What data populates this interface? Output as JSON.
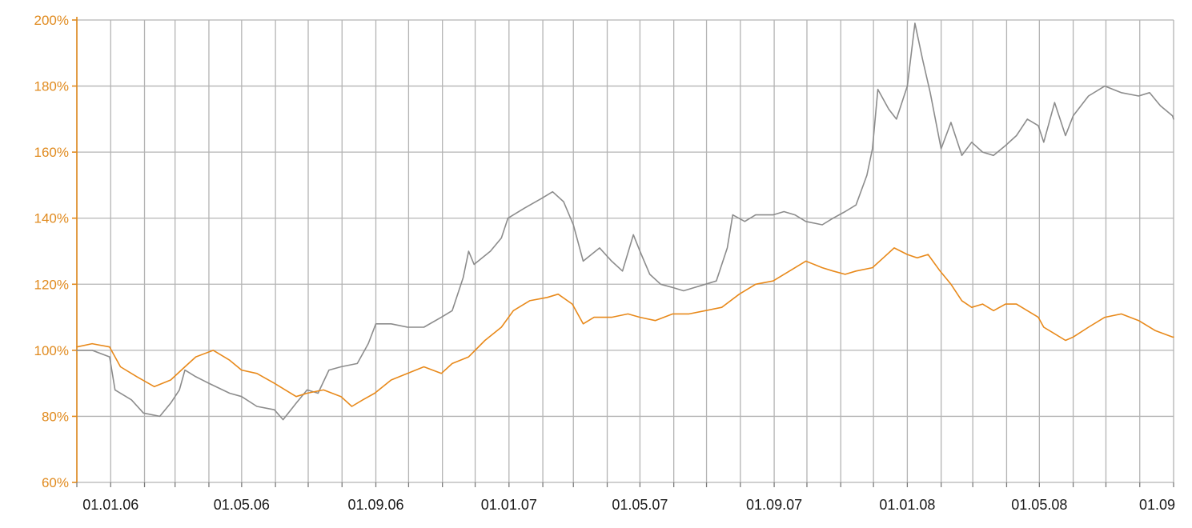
{
  "colors": {
    "orange_series": "#e8891a",
    "gray_series": "#8c8c8c",
    "y_axis": "#e08a1e",
    "grid": "#b4b4b4",
    "background": "#ffffff"
  },
  "chart_data": {
    "type": "line",
    "title": "",
    "xlabel": "",
    "ylabel": "",
    "x_start": "2005-12-01",
    "x_end": "2008-09-01",
    "ylim": [
      60,
      200
    ],
    "y_ticks": [
      60,
      80,
      100,
      120,
      140,
      160,
      180,
      200
    ],
    "y_tick_labels": [
      "60%",
      "80%",
      "100%",
      "120%",
      "140%",
      "160%",
      "180%",
      "200%"
    ],
    "x_tick_labels": [
      "01.01.06",
      "01.05.06",
      "01.09.06",
      "01.01.07",
      "01.05.07",
      "01.09.07",
      "01.01.08",
      "01.05.08",
      "01.09"
    ],
    "x_label_dates": [
      "2006-01-01",
      "2006-05-01",
      "2006-09-01",
      "2007-01-01",
      "2007-05-01",
      "2007-09-01",
      "2008-01-01",
      "2008-05-01",
      "2008-09-01"
    ],
    "grid": true,
    "series": [
      {
        "color": "#8c8c8c",
        "points": [
          [
            "2005-12-01",
            100
          ],
          [
            "2005-12-15",
            100
          ],
          [
            "2005-12-31",
            98
          ],
          [
            "2006-01-05",
            88
          ],
          [
            "2006-01-20",
            85
          ],
          [
            "2006-01-31",
            81
          ],
          [
            "2006-02-15",
            80
          ],
          [
            "2006-02-25",
            84
          ],
          [
            "2006-03-05",
            88
          ],
          [
            "2006-03-10",
            94
          ],
          [
            "2006-03-20",
            92
          ],
          [
            "2006-04-01",
            90
          ],
          [
            "2006-04-20",
            87
          ],
          [
            "2006-05-01",
            86
          ],
          [
            "2006-05-15",
            83
          ],
          [
            "2006-05-31",
            82
          ],
          [
            "2006-06-08",
            79
          ],
          [
            "2006-06-20",
            84
          ],
          [
            "2006-06-30",
            88
          ],
          [
            "2006-07-10",
            87
          ],
          [
            "2006-07-20",
            94
          ],
          [
            "2006-07-31",
            95
          ],
          [
            "2006-08-15",
            96
          ],
          [
            "2006-08-25",
            102
          ],
          [
            "2006-09-01",
            108
          ],
          [
            "2006-09-15",
            108
          ],
          [
            "2006-09-30",
            107
          ],
          [
            "2006-10-15",
            107
          ],
          [
            "2006-10-31",
            110
          ],
          [
            "2006-11-10",
            112
          ],
          [
            "2006-11-20",
            122
          ],
          [
            "2006-11-25",
            130
          ],
          [
            "2006-11-30",
            126
          ],
          [
            "2006-12-15",
            130
          ],
          [
            "2006-12-25",
            134
          ],
          [
            "2006-12-31",
            140
          ],
          [
            "2007-01-15",
            143
          ],
          [
            "2007-01-31",
            146
          ],
          [
            "2007-02-10",
            148
          ],
          [
            "2007-02-20",
            145
          ],
          [
            "2007-03-01",
            138
          ],
          [
            "2007-03-10",
            127
          ],
          [
            "2007-03-25",
            131
          ],
          [
            "2007-04-05",
            127
          ],
          [
            "2007-04-15",
            124
          ],
          [
            "2007-04-25",
            135
          ],
          [
            "2007-05-01",
            130
          ],
          [
            "2007-05-10",
            123
          ],
          [
            "2007-05-20",
            120
          ],
          [
            "2007-05-31",
            119
          ],
          [
            "2007-06-10",
            118
          ],
          [
            "2007-06-20",
            119
          ],
          [
            "2007-06-30",
            120
          ],
          [
            "2007-07-10",
            121
          ],
          [
            "2007-07-20",
            131
          ],
          [
            "2007-07-25",
            141
          ],
          [
            "2007-08-05",
            139
          ],
          [
            "2007-08-15",
            141
          ],
          [
            "2007-08-31",
            141
          ],
          [
            "2007-09-10",
            142
          ],
          [
            "2007-09-20",
            141
          ],
          [
            "2007-09-30",
            139
          ],
          [
            "2007-10-15",
            138
          ],
          [
            "2007-10-25",
            140
          ],
          [
            "2007-11-05",
            142
          ],
          [
            "2007-11-15",
            144
          ],
          [
            "2007-11-25",
            153
          ],
          [
            "2007-11-30",
            161
          ],
          [
            "2007-12-05",
            179
          ],
          [
            "2007-12-15",
            173
          ],
          [
            "2007-12-22",
            170
          ],
          [
            "2008-01-01",
            180
          ],
          [
            "2008-01-08",
            199
          ],
          [
            "2008-01-15",
            188
          ],
          [
            "2008-01-22",
            178
          ],
          [
            "2008-02-01",
            161
          ],
          [
            "2008-02-10",
            169
          ],
          [
            "2008-02-20",
            159
          ],
          [
            "2008-02-29",
            163
          ],
          [
            "2008-03-10",
            160
          ],
          [
            "2008-03-20",
            159
          ],
          [
            "2008-03-31",
            162
          ],
          [
            "2008-04-10",
            165
          ],
          [
            "2008-04-20",
            170
          ],
          [
            "2008-04-30",
            168
          ],
          [
            "2008-05-05",
            163
          ],
          [
            "2008-05-15",
            175
          ],
          [
            "2008-05-25",
            165
          ],
          [
            "2008-06-01",
            171
          ],
          [
            "2008-06-15",
            177
          ],
          [
            "2008-06-30",
            180
          ],
          [
            "2008-07-15",
            178
          ],
          [
            "2008-07-31",
            177
          ],
          [
            "2008-08-10",
            178
          ],
          [
            "2008-08-20",
            174
          ],
          [
            "2008-08-31",
            171
          ],
          [
            "2008-09-01",
            170
          ]
        ]
      },
      {
        "color": "#e8891a",
        "points": [
          [
            "2005-12-01",
            101
          ],
          [
            "2005-12-15",
            102
          ],
          [
            "2005-12-31",
            101
          ],
          [
            "2006-01-10",
            95
          ],
          [
            "2006-01-25",
            92
          ],
          [
            "2006-02-10",
            89
          ],
          [
            "2006-02-25",
            91
          ],
          [
            "2006-03-10",
            95
          ],
          [
            "2006-03-20",
            98
          ],
          [
            "2006-04-05",
            100
          ],
          [
            "2006-04-20",
            97
          ],
          [
            "2006-05-01",
            94
          ],
          [
            "2006-05-15",
            93
          ],
          [
            "2006-05-31",
            90
          ],
          [
            "2006-06-10",
            88
          ],
          [
            "2006-06-20",
            86
          ],
          [
            "2006-06-30",
            87
          ],
          [
            "2006-07-15",
            88
          ],
          [
            "2006-07-31",
            86
          ],
          [
            "2006-08-10",
            83
          ],
          [
            "2006-08-20",
            85
          ],
          [
            "2006-08-31",
            87
          ],
          [
            "2006-09-15",
            91
          ],
          [
            "2006-09-30",
            93
          ],
          [
            "2006-10-15",
            95
          ],
          [
            "2006-10-31",
            93
          ],
          [
            "2006-11-10",
            96
          ],
          [
            "2006-11-25",
            98
          ],
          [
            "2006-12-10",
            103
          ],
          [
            "2006-12-25",
            107
          ],
          [
            "2007-01-05",
            112
          ],
          [
            "2007-01-20",
            115
          ],
          [
            "2007-02-05",
            116
          ],
          [
            "2007-02-15",
            117
          ],
          [
            "2007-02-28",
            114
          ],
          [
            "2007-03-10",
            108
          ],
          [
            "2007-03-20",
            110
          ],
          [
            "2007-04-05",
            110
          ],
          [
            "2007-04-20",
            111
          ],
          [
            "2007-05-01",
            110
          ],
          [
            "2007-05-15",
            109
          ],
          [
            "2007-05-31",
            111
          ],
          [
            "2007-06-15",
            111
          ],
          [
            "2007-06-30",
            112
          ],
          [
            "2007-07-15",
            113
          ],
          [
            "2007-07-31",
            117
          ],
          [
            "2007-08-15",
            120
          ],
          [
            "2007-08-31",
            121
          ],
          [
            "2007-09-15",
            124
          ],
          [
            "2007-09-30",
            127
          ],
          [
            "2007-10-15",
            125
          ],
          [
            "2007-10-25",
            124
          ],
          [
            "2007-11-05",
            123
          ],
          [
            "2007-11-15",
            124
          ],
          [
            "2007-11-30",
            125
          ],
          [
            "2007-12-10",
            128
          ],
          [
            "2007-12-20",
            131
          ],
          [
            "2008-01-01",
            129
          ],
          [
            "2008-01-10",
            128
          ],
          [
            "2008-01-20",
            129
          ],
          [
            "2008-01-31",
            124
          ],
          [
            "2008-02-10",
            120
          ],
          [
            "2008-02-20",
            115
          ],
          [
            "2008-02-29",
            113
          ],
          [
            "2008-03-10",
            114
          ],
          [
            "2008-03-20",
            112
          ],
          [
            "2008-03-31",
            114
          ],
          [
            "2008-04-10",
            114
          ],
          [
            "2008-04-20",
            112
          ],
          [
            "2008-04-30",
            110
          ],
          [
            "2008-05-05",
            107
          ],
          [
            "2008-05-15",
            105
          ],
          [
            "2008-05-25",
            103
          ],
          [
            "2008-06-01",
            104
          ],
          [
            "2008-06-15",
            107
          ],
          [
            "2008-06-30",
            110
          ],
          [
            "2008-07-15",
            111
          ],
          [
            "2008-07-31",
            109
          ],
          [
            "2008-08-15",
            106
          ],
          [
            "2008-08-31",
            104
          ],
          [
            "2008-09-01",
            104
          ]
        ]
      }
    ]
  }
}
